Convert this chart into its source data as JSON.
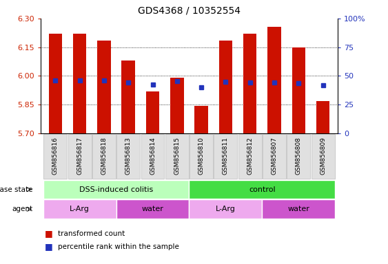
{
  "title": "GDS4368 / 10352554",
  "samples": [
    "GSM856816",
    "GSM856817",
    "GSM856818",
    "GSM856813",
    "GSM856814",
    "GSM856815",
    "GSM856810",
    "GSM856811",
    "GSM856812",
    "GSM856807",
    "GSM856808",
    "GSM856809"
  ],
  "bar_tops": [
    6.22,
    6.22,
    6.185,
    6.08,
    5.92,
    5.99,
    5.845,
    6.185,
    6.22,
    6.255,
    6.15,
    5.87
  ],
  "blue_dots": [
    5.975,
    5.975,
    5.975,
    5.965,
    5.953,
    5.972,
    5.94,
    5.968,
    5.965,
    5.965,
    5.963,
    5.952
  ],
  "bar_base": 5.7,
  "ylim_left": [
    5.7,
    6.3
  ],
  "ylim_right": [
    0,
    100
  ],
  "yticks_left": [
    5.7,
    5.85,
    6.0,
    6.15,
    6.3
  ],
  "yticks_right": [
    0,
    25,
    50,
    75,
    100
  ],
  "ytick_labels_right": [
    "0",
    "25",
    "50",
    "75",
    "100%"
  ],
  "bar_color": "#cc1100",
  "dot_color": "#2233bb",
  "disease_state_groups": [
    {
      "label": "DSS-induced colitis",
      "start": 0,
      "end": 6,
      "color": "#bbffbb"
    },
    {
      "label": "control",
      "start": 6,
      "end": 12,
      "color": "#44dd44"
    }
  ],
  "agent_groups": [
    {
      "label": "L-Arg",
      "start": 0,
      "end": 3,
      "color": "#ee88ee"
    },
    {
      "label": "water",
      "start": 3,
      "end": 6,
      "color": "#cc44cc"
    },
    {
      "label": "L-Arg",
      "start": 6,
      "end": 9,
      "color": "#ee88ee"
    },
    {
      "label": "water",
      "start": 9,
      "end": 12,
      "color": "#cc44cc"
    }
  ],
  "disease_label": "disease state",
  "agent_label": "agent",
  "legend_items": [
    "transformed count",
    "percentile rank within the sample"
  ],
  "grid_yticks": [
    5.85,
    6.0,
    6.15
  ]
}
